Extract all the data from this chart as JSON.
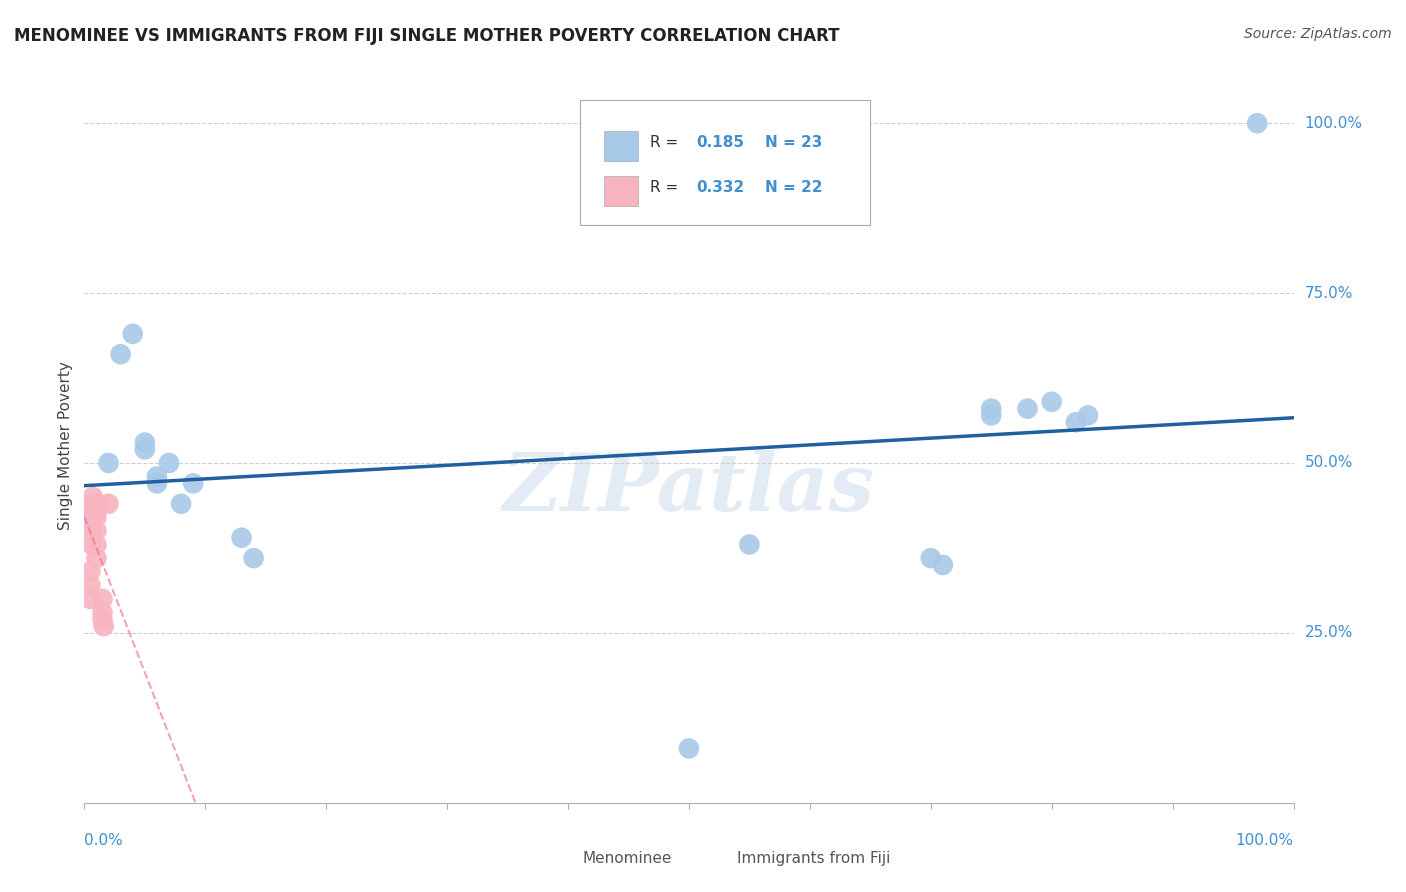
{
  "title": "MENOMINEE VS IMMIGRANTS FROM FIJI SINGLE MOTHER POVERTY CORRELATION CHART",
  "source": "Source: ZipAtlas.com",
  "ylabel": "Single Mother Poverty",
  "watermark": "ZIPatlas",
  "legend": {
    "menominee_R": 0.185,
    "menominee_N": 23,
    "fiji_R": 0.332,
    "fiji_N": 22
  },
  "ytick_labels": [
    "25.0%",
    "50.0%",
    "75.0%",
    "100.0%"
  ],
  "ytick_values": [
    0.25,
    0.5,
    0.75,
    1.0
  ],
  "menominee_x": [
    0.02,
    0.03,
    0.04,
    0.05,
    0.05,
    0.06,
    0.06,
    0.07,
    0.08,
    0.09,
    0.13,
    0.14,
    0.75,
    0.8,
    0.82,
    0.83,
    0.97,
    0.55,
    0.7,
    0.71,
    0.75,
    0.78,
    0.5
  ],
  "menominee_y": [
    0.5,
    0.66,
    0.69,
    0.53,
    0.52,
    0.48,
    0.47,
    0.5,
    0.44,
    0.47,
    0.39,
    0.36,
    0.58,
    0.59,
    0.56,
    0.57,
    1.0,
    0.38,
    0.36,
    0.35,
    0.57,
    0.58,
    0.08
  ],
  "fiji_x": [
    0.005,
    0.005,
    0.005,
    0.006,
    0.006,
    0.006,
    0.007,
    0.007,
    0.007,
    0.007,
    0.007,
    0.01,
    0.01,
    0.01,
    0.01,
    0.01,
    0.01,
    0.015,
    0.015,
    0.015,
    0.016,
    0.02
  ],
  "fiji_y": [
    0.3,
    0.32,
    0.34,
    0.38,
    0.4,
    0.41,
    0.43,
    0.44,
    0.45,
    0.43,
    0.42,
    0.44,
    0.43,
    0.42,
    0.4,
    0.38,
    0.36,
    0.3,
    0.28,
    0.27,
    0.26,
    0.44
  ],
  "menominee_color": "#a8c8e8",
  "fiji_color": "#f8b4c0",
  "menominee_line_color": "#2060a0",
  "fiji_line_color": "#e87090",
  "background_color": "#ffffff",
  "grid_color": "#d0d0d0",
  "axis_color": "#b0b0b0",
  "text_color_blue": "#2060a0",
  "right_label_color": "#4090d0"
}
